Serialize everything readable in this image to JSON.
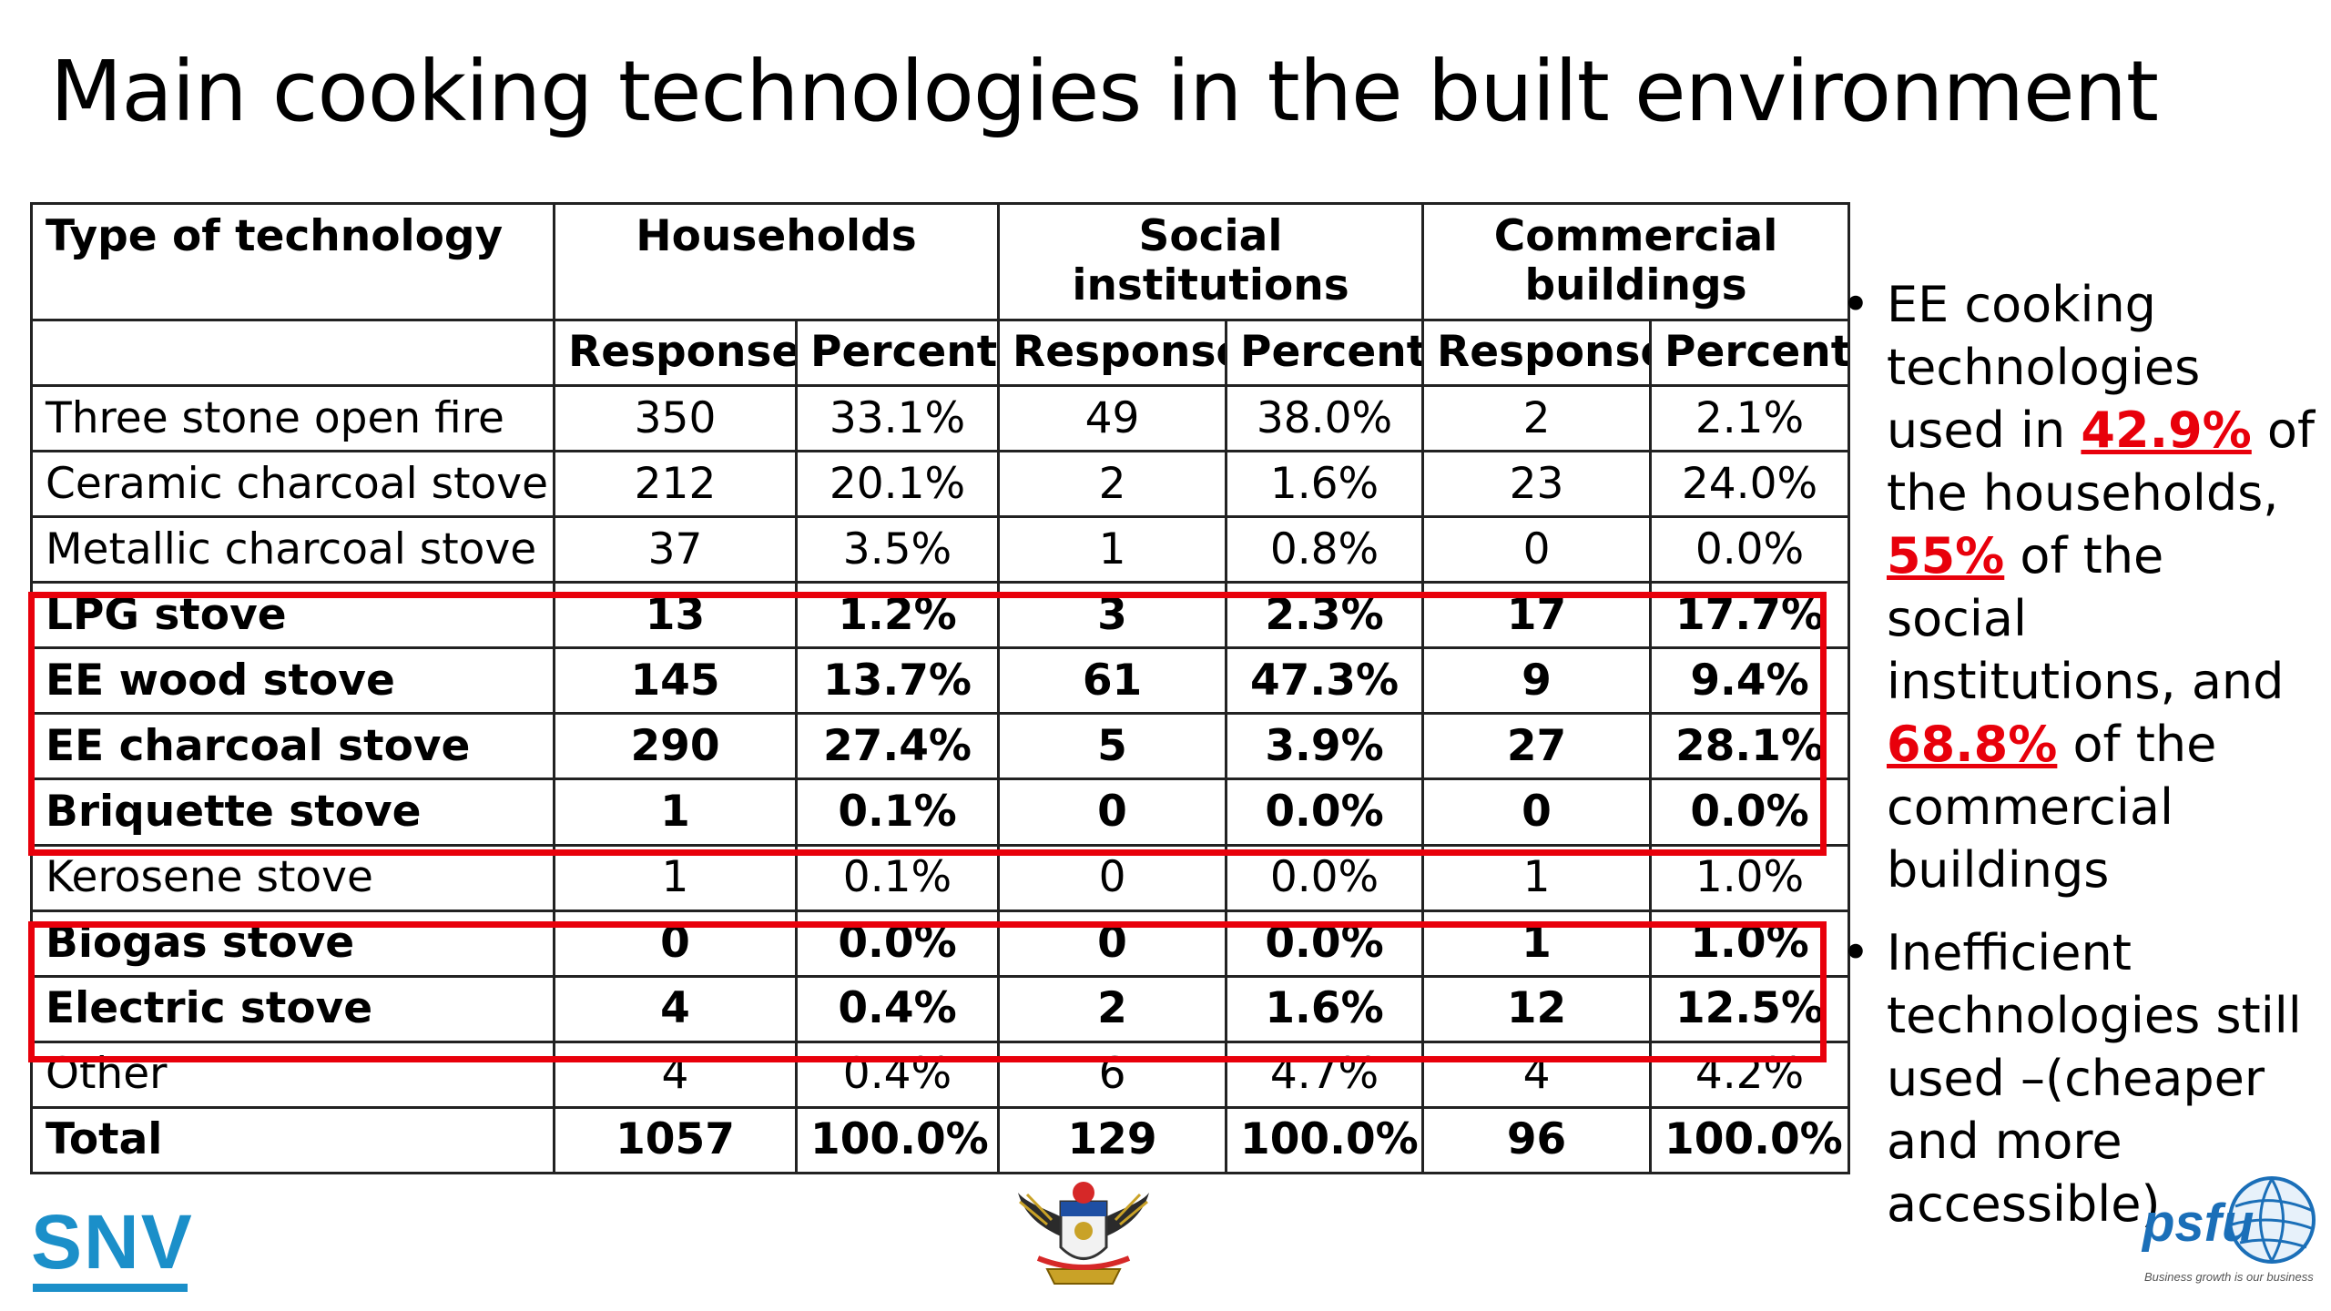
{
  "title": "Main cooking technologies in the built environment",
  "table": {
    "col_type": "Type of technology",
    "groups": [
      "Households",
      "Social institutions",
      "Commercial buildings"
    ],
    "sub_response": "Response",
    "sub_percent": "Percent",
    "rows": [
      {
        "label": "Three stone open fire",
        "cells": [
          "350",
          "33.1%",
          "49",
          "38.0%",
          "2",
          "2.1%"
        ]
      },
      {
        "label": "Ceramic charcoal stove",
        "cells": [
          "212",
          "20.1%",
          "2",
          "1.6%",
          "23",
          "24.0%"
        ]
      },
      {
        "label": "Metallic charcoal stove",
        "cells": [
          "37",
          "3.5%",
          "1",
          "0.8%",
          "0",
          "0.0%"
        ]
      },
      {
        "label": "LPG stove",
        "cells": [
          "13",
          "1.2%",
          "3",
          "2.3%",
          "17",
          "17.7%"
        ]
      },
      {
        "label": "EE wood stove",
        "cells": [
          "145",
          "13.7%",
          "61",
          "47.3%",
          "9",
          "9.4%"
        ]
      },
      {
        "label": "EE charcoal stove",
        "cells": [
          "290",
          "27.4%",
          "5",
          "3.9%",
          "27",
          "28.1%"
        ]
      },
      {
        "label": "Briquette stove",
        "cells": [
          "1",
          "0.1%",
          "0",
          "0.0%",
          "0",
          "0.0%"
        ]
      },
      {
        "label": "Kerosene stove",
        "cells": [
          "1",
          "0.1%",
          "0",
          "0.0%",
          "1",
          "1.0%"
        ]
      },
      {
        "label": "Biogas stove",
        "cells": [
          "0",
          "0.0%",
          "0",
          "0.0%",
          "1",
          "1.0%"
        ]
      },
      {
        "label": "Electric stove",
        "cells": [
          "4",
          "0.4%",
          "2",
          "1.6%",
          "12",
          "12.5%"
        ]
      },
      {
        "label": "Other",
        "cells": [
          "4",
          "0.4%",
          "6",
          "4.7%",
          "4",
          "4.2%"
        ]
      },
      {
        "label": "Total",
        "cells": [
          "1057",
          "100.0%",
          "129",
          "100.0%",
          "96",
          "100.0%"
        ]
      }
    ]
  },
  "bullets": {
    "b1_part1": "EE cooking technologies used in ",
    "b1_hl1": "42.9%",
    "b1_part2": " of the  households, ",
    "b1_hl2": "55%",
    "b1_part3": " of the social institutions, and ",
    "b1_hl3": "68.8%",
    "b1_part4": " of the commercial buildings",
    "b2": "Inefficient technologies still used –(cheaper and more accessible)"
  },
  "logos": {
    "snv": "SNV",
    "psfu": "psfu",
    "psfu_tagline": "Business growth is our business"
  },
  "colors": {
    "highlight": "#e8000b",
    "snv_blue": "#1b8fc9",
    "psfu_blue": "#1b6fb8"
  }
}
